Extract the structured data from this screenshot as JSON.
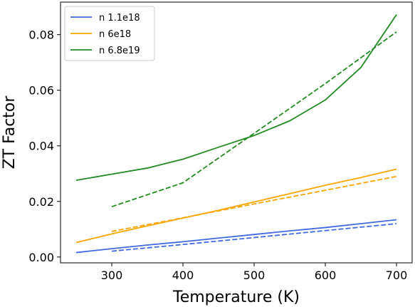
{
  "chart_data": {
    "type": "line",
    "xlabel": "Temperature (K)",
    "ylabel": "ZT Factor",
    "xlim": [
      228,
      722
    ],
    "ylim": [
      -0.0021,
      0.0917
    ],
    "xticks": [
      300,
      400,
      500,
      600,
      700
    ],
    "yticks": [
      0.0,
      0.02,
      0.04,
      0.06,
      0.08
    ],
    "xtick_labels": [
      "300",
      "400",
      "500",
      "600",
      "700"
    ],
    "ytick_labels": [
      "0.00",
      "0.02",
      "0.04",
      "0.06",
      "0.08"
    ],
    "legend_position": "top-left",
    "grid": false,
    "series": [
      {
        "name": "n 1.1e18",
        "color": "#4169e1",
        "style": "solid",
        "x": [
          250,
          300,
          350,
          400,
          450,
          500,
          550,
          600,
          650,
          700
        ],
        "y": [
          0.0016,
          0.003,
          0.0043,
          0.0055,
          0.0068,
          0.0081,
          0.0094,
          0.0106,
          0.012,
          0.0134
        ]
      },
      {
        "name": "n 6e18",
        "color": "#ffa500",
        "style": "solid",
        "x": [
          250,
          300,
          350,
          400,
          450,
          500,
          550,
          600,
          650,
          700
        ],
        "y": [
          0.0052,
          0.0083,
          0.0112,
          0.014,
          0.0168,
          0.0198,
          0.0228,
          0.0258,
          0.0286,
          0.0316
        ]
      },
      {
        "name": "n 6.8e19",
        "color": "#228b22",
        "style": "solid",
        "x": [
          250,
          300,
          350,
          400,
          450,
          500,
          550,
          600,
          650,
          700
        ],
        "y": [
          0.0276,
          0.0298,
          0.032,
          0.0352,
          0.0395,
          0.0437,
          0.049,
          0.0565,
          0.0682,
          0.0872
        ]
      },
      {
        "color": "#4169e1",
        "style": "dashed",
        "x": [
          300,
          400,
          500,
          600,
          700
        ],
        "y": [
          0.0021,
          0.0045,
          0.007,
          0.0095,
          0.012
        ]
      },
      {
        "color": "#ffa500",
        "style": "dashed",
        "x": [
          300,
          400,
          500,
          600,
          700
        ],
        "y": [
          0.0092,
          0.0141,
          0.0191,
          0.024,
          0.029
        ]
      },
      {
        "color": "#228b22",
        "style": "dashed",
        "x": [
          300,
          400,
          500,
          600,
          700
        ],
        "y": [
          0.0181,
          0.0267,
          0.0445,
          0.0624,
          0.081
        ]
      }
    ]
  }
}
